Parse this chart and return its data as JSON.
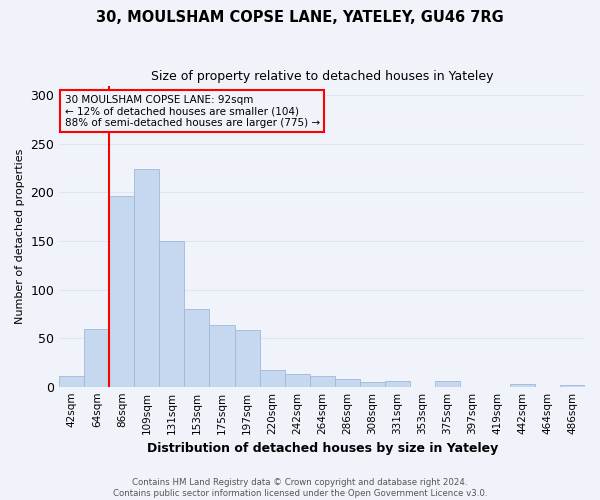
{
  "title": "30, MOULSHAM COPSE LANE, YATELEY, GU46 7RG",
  "subtitle": "Size of property relative to detached houses in Yateley",
  "xlabel": "Distribution of detached houses by size in Yateley",
  "ylabel": "Number of detached properties",
  "footer_line1": "Contains HM Land Registry data © Crown copyright and database right 2024.",
  "footer_line2": "Contains public sector information licensed under the Open Government Licence v3.0.",
  "bin_labels": [
    "42sqm",
    "64sqm",
    "86sqm",
    "109sqm",
    "131sqm",
    "153sqm",
    "175sqm",
    "197sqm",
    "220sqm",
    "242sqm",
    "264sqm",
    "286sqm",
    "308sqm",
    "331sqm",
    "353sqm",
    "375sqm",
    "397sqm",
    "419sqm",
    "442sqm",
    "464sqm",
    "486sqm"
  ],
  "bar_values": [
    11,
    59,
    196,
    224,
    150,
    80,
    63,
    58,
    17,
    13,
    11,
    8,
    5,
    6,
    0,
    6,
    0,
    0,
    3,
    0,
    2
  ],
  "bar_color": "#c5d8f0",
  "bar_edge_color": "#a0b8d8",
  "annotation_box_text": "30 MOULSHAM COPSE LANE: 92sqm\n← 12% of detached houses are smaller (104)\n88% of semi-detached houses are larger (775) →",
  "red_line_bin_index": 2,
  "ylim": [
    0,
    310
  ],
  "yticks": [
    0,
    50,
    100,
    150,
    200,
    250,
    300
  ],
  "background_color": "#f0f4fa",
  "grid_color": "#dce6f5"
}
